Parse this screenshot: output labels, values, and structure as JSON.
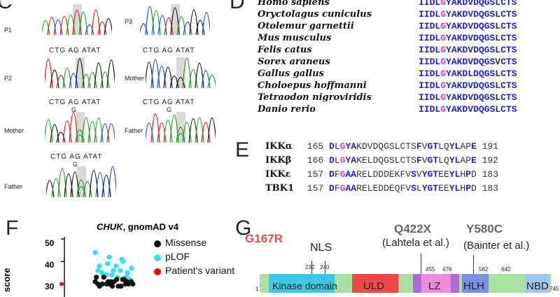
{
  "panels": {
    "C": "C",
    "D": "D",
    "E": "E",
    "F": "F",
    "G": "G"
  },
  "panel_c": {
    "traces": [
      {
        "label": "P1"
      },
      {
        "label": "P3"
      },
      {
        "label": "P2",
        "seq": "CTG AG ATAT"
      },
      {
        "label": "Mother",
        "seq": "CTG AG ATAT"
      },
      {
        "label": "Mother",
        "seq": "CTG AG ATAT",
        "variant": "G"
      },
      {
        "label": "Father",
        "seq": "CTG AG ATAT",
        "variant": "G"
      },
      {
        "label": "Father",
        "seq": "CTG AG ATAT",
        "variant": "G"
      }
    ]
  },
  "panel_d": {
    "rows": [
      {
        "species": "Homo sapiens",
        "pre": "IIDL",
        "hl": "G",
        "post": "YAKDVDQGS",
        "dim": "L",
        "end": "CTS"
      },
      {
        "species": "Oryctolagus cuniculus",
        "pre": "IIDL",
        "hl": "G",
        "post": "YAKDVDQGS",
        "dim": "L",
        "end": "CTS"
      },
      {
        "species": "Otolemur garnettii",
        "pre": "IIDL",
        "hl": "G",
        "post": "YAKDVDQGS",
        "dim": "L",
        "end": "CTS"
      },
      {
        "species": "Mus musculus",
        "pre": "IIDL",
        "hl": "G",
        "post": "YAKDVDQGS",
        "dim": "L",
        "end": "CTS"
      },
      {
        "species": "Felis catus",
        "pre": "IIDL",
        "hl": "G",
        "post": "YAKDVDQGS",
        "dim": "L",
        "end": "CTS"
      },
      {
        "species": "Sorex araneus",
        "pre": "IIDL",
        "hl": "G",
        "post": "YAKDVDQGS",
        "dim": "V",
        "end": "CTS"
      },
      {
        "species": "Gallus gallus",
        "pre": "IIDL",
        "hl": "G",
        "post": "YAKDLDQGS",
        "dim": "L",
        "end": "CTS"
      },
      {
        "species": "Choloepus hoffmanni",
        "pre": "IIDL",
        "hl": "G",
        "post": "YAKDVDQGS",
        "dim": "L",
        "end": "CTS"
      },
      {
        "species": "Tetraodon nigroviridis",
        "pre": "IIDL",
        "hl": "G",
        "post": "YAKDVDQGS",
        "dim": "L",
        "end": "CTS"
      },
      {
        "species": "Danio rerio",
        "pre": "IIDL",
        "hl": "G",
        "post": "YAKDVDQGS",
        "dim": "L",
        "end": "CTS"
      }
    ]
  },
  "panel_e": {
    "rows": [
      {
        "name": "IKKα",
        "start": "165",
        "end": "191",
        "parts": [
          [
            "c",
            "D"
          ],
          [
            "n",
            "L"
          ],
          [
            "m",
            "G"
          ],
          [
            "c",
            "YA"
          ],
          [
            "n",
            "KDVDQGSLCTS"
          ],
          [
            "c",
            "F"
          ],
          [
            "n",
            "V"
          ],
          [
            "c",
            "GT"
          ],
          [
            "n",
            "LQ"
          ],
          [
            "c",
            "YL"
          ],
          [
            "n",
            "AP"
          ],
          [
            "c",
            "E"
          ]
        ]
      },
      {
        "name": "IKKβ",
        "start": "166",
        "end": "192",
        "parts": [
          [
            "c",
            "D"
          ],
          [
            "n",
            "L"
          ],
          [
            "m",
            "G"
          ],
          [
            "c",
            "YA"
          ],
          [
            "n",
            "KELDQGSLCTS"
          ],
          [
            "c",
            "F"
          ],
          [
            "n",
            "V"
          ],
          [
            "c",
            "GT"
          ],
          [
            "n",
            "LQ"
          ],
          [
            "c",
            "YL"
          ],
          [
            "n",
            "AP"
          ],
          [
            "c",
            "E"
          ]
        ]
      },
      {
        "name": "IKKε",
        "start": "157",
        "end": "183",
        "parts": [
          [
            "c",
            "D"
          ],
          [
            "n",
            "F"
          ],
          [
            "m",
            "G"
          ],
          [
            "c",
            "AA"
          ],
          [
            "n",
            "RELDDDEKFV"
          ],
          [
            "c",
            "S"
          ],
          [
            "n",
            "V"
          ],
          [
            "c",
            "YGT"
          ],
          [
            "n",
            "EE"
          ],
          [
            "c",
            "YL"
          ],
          [
            "n",
            "H"
          ],
          [
            "c",
            "P"
          ],
          [
            "n",
            "D"
          ]
        ]
      },
      {
        "name": "TBK1",
        "start": "157",
        "end": "183",
        "parts": [
          [
            "c",
            "D"
          ],
          [
            "n",
            "F"
          ],
          [
            "m",
            "G"
          ],
          [
            "c",
            "AA"
          ],
          [
            "n",
            "RELEDDEQFV"
          ],
          [
            "c",
            "S"
          ],
          [
            "n",
            "L"
          ],
          [
            "c",
            "YGT"
          ],
          [
            "n",
            "EE"
          ],
          [
            "c",
            "YL"
          ],
          [
            "n",
            "H"
          ],
          [
            "c",
            "P"
          ],
          [
            "n",
            "D"
          ]
        ]
      }
    ]
  },
  "panel_f": {
    "title_gene": "CHUK",
    "title_rest": ", gnomAD v4",
    "ylabel": "score",
    "yticks": [
      "50",
      "40",
      "30"
    ],
    "legend": [
      {
        "label": "Missense",
        "color": "#111111"
      },
      {
        "label": "pLOF",
        "color": "#33e0f0"
      },
      {
        "label": "Patient's variant",
        "color": "#dd1111"
      }
    ],
    "chart_data": {
      "type": "scatter",
      "title": "CHUK, gnomAD v4",
      "ylabel": "score",
      "ylim": [
        27,
        55
      ],
      "series": [
        {
          "name": "Missense",
          "color": "#111111",
          "values": [
            31,
            30,
            32,
            29,
            31,
            30,
            33,
            29,
            30,
            31,
            32,
            30,
            29,
            31,
            30,
            32,
            31,
            30,
            29,
            33,
            31,
            30
          ]
        },
        {
          "name": "pLOF",
          "color": "#33e0f0",
          "values": [
            44,
            42,
            40,
            38,
            36,
            35,
            34,
            33,
            37,
            39,
            41,
            36,
            34,
            33,
            35,
            38,
            32,
            34,
            36,
            33
          ]
        },
        {
          "name": "Patient's variant",
          "color": "#dd1111",
          "values": [
            30
          ]
        }
      ]
    }
  },
  "panel_g": {
    "variants": [
      {
        "label": "G167R",
        "color": "#e84b4b"
      },
      {
        "label": "Q422X",
        "color": "#666666",
        "ref": "(Lahtela et al.)"
      },
      {
        "label": "Y580C",
        "color": "#666666",
        "ref": "(Bainter et al.)"
      }
    ],
    "nls": "NLS",
    "positions": [
      "232",
      "240",
      "455",
      "476",
      "562",
      "642"
    ],
    "start": "1",
    "end": "745",
    "domains": [
      {
        "label": "Kinase domain",
        "color": "#3cc9e6"
      },
      {
        "label": "ULD",
        "color": "#f04848"
      },
      {
        "label": "LZ",
        "color": "#f08adc"
      },
      {
        "label": "HLH",
        "color": "#7c8de0"
      },
      {
        "label": "NBD",
        "color": "#9ec6f0"
      }
    ],
    "backbone_color": "#a8e0a0"
  }
}
